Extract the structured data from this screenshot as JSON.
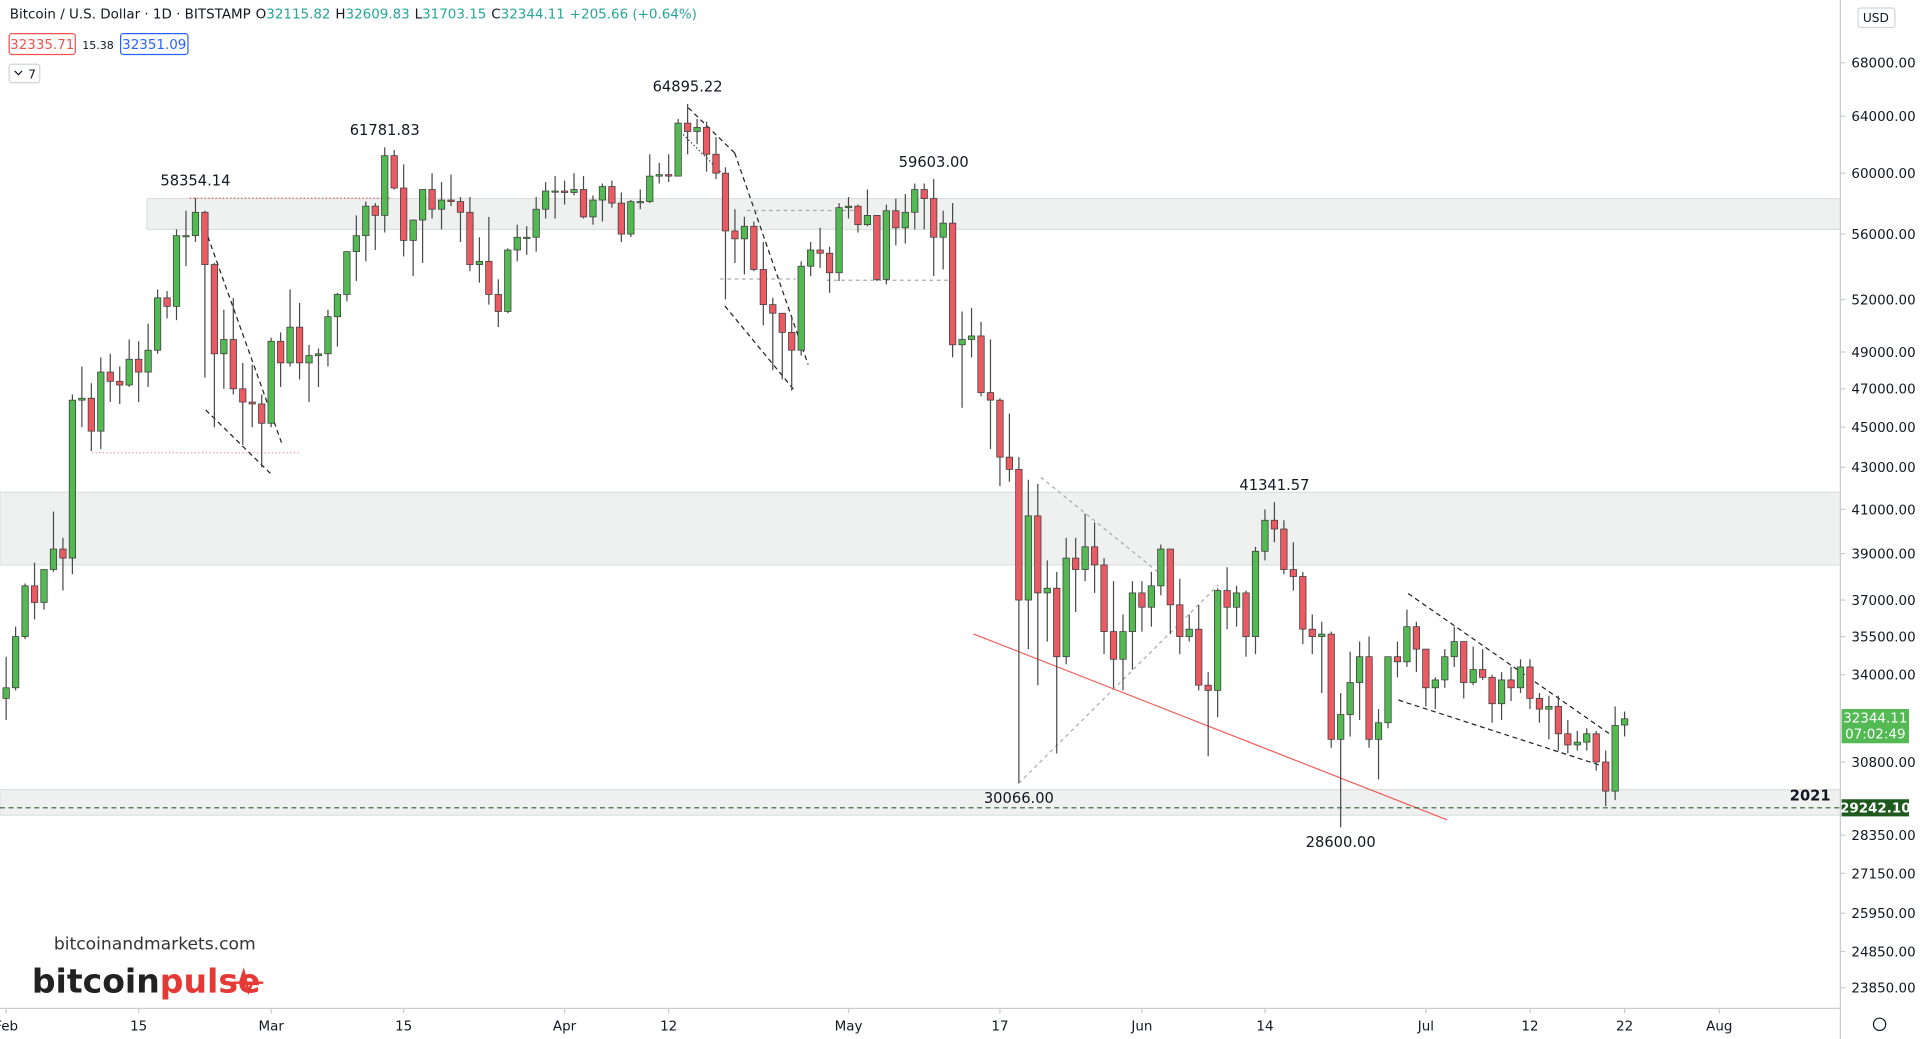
{
  "chart_data": {
    "type": "candlestick",
    "header": {
      "title": "Bitcoin / U.S. Dollar · 1D · BITSTAMP",
      "o": "O",
      "h": "H",
      "l": "L",
      "c": "C",
      "change": "+205.66 (+0.64%)",
      "bid": "32335.71",
      "spread": "15.38",
      "ask": "32351.09",
      "indicators": "7",
      "currency": "USD",
      "countdown": "07:02:49"
    },
    "log_scale": true,
    "up_color": "#53b953",
    "down_color": "#ea5a62",
    "wick_color": "#4a4a4a",
    "ylim": [
      23300,
      73000
    ],
    "yticks": [
      {
        "value": 68000,
        "label": "68000.00"
      },
      {
        "value": 64000,
        "label": "64000.00"
      },
      {
        "value": 60000,
        "label": "60000.00"
      },
      {
        "value": 56000,
        "label": "56000.00"
      },
      {
        "value": 52000,
        "label": "52000.00"
      },
      {
        "value": 49000,
        "label": "49000.00"
      },
      {
        "value": 47000,
        "label": "47000.00"
      },
      {
        "value": 45000,
        "label": "45000.00"
      },
      {
        "value": 43000,
        "label": "43000.00"
      },
      {
        "value": 41000,
        "label": "41000.00"
      },
      {
        "value": 39000,
        "label": "39000.00"
      },
      {
        "value": 37000,
        "label": "37000.00"
      },
      {
        "value": 35500,
        "label": "35500.00"
      },
      {
        "value": 34000,
        "label": "34000.00"
      },
      {
        "value": 30800,
        "label": "30800.00"
      },
      {
        "value": 28350,
        "label": "28350.00"
      },
      {
        "value": 27150,
        "label": "27150.00"
      },
      {
        "value": 25950,
        "label": "25950.00"
      },
      {
        "value": 24850,
        "label": "24850.00"
      },
      {
        "value": 23850,
        "label": "23850.00"
      }
    ],
    "xlim": [
      -0.65,
      193.8
    ],
    "xticks": [
      {
        "value": 0,
        "label": "Feb"
      },
      {
        "value": 14,
        "label": "15"
      },
      {
        "value": 28,
        "label": "Mar"
      },
      {
        "value": 42,
        "label": "15"
      },
      {
        "value": 59,
        "label": "Apr"
      },
      {
        "value": 70,
        "label": "12"
      },
      {
        "value": 89,
        "label": "May"
      },
      {
        "value": 105,
        "label": "17"
      },
      {
        "value": 120,
        "label": "Jun"
      },
      {
        "value": 133,
        "label": "14"
      },
      {
        "value": 150,
        "label": "Jul"
      },
      {
        "value": 161,
        "label": "12"
      },
      {
        "value": 171,
        "label": "22"
      },
      {
        "value": 181,
        "label": "Aug"
      }
    ],
    "zones": [
      [
        56300,
        58300
      ],
      [
        38500,
        41800
      ],
      [
        29000,
        29850
      ]
    ],
    "levels": [
      {
        "value": 29242.1,
        "label": "2021",
        "price_label": "29242.10"
      }
    ],
    "annotations": [
      {
        "value": 58354.14,
        "label": "58354.14"
      },
      {
        "value": 61781.83,
        "label": "61781.83"
      },
      {
        "value": 64895.22,
        "label": "64895.22"
      },
      {
        "value": 59603,
        "label": "59603.00"
      },
      {
        "value": 41341.57,
        "label": "41341.57"
      },
      {
        "value": 30066,
        "label": "30066.00"
      },
      {
        "value": 28600,
        "label": "28600.00"
      }
    ],
    "watermark": {
      "site": "bitcoinandmarkets.com",
      "brand_a": "bitcoin",
      "brand_b": "pulse"
    },
    "candles": [
      [
        33100,
        34700,
        32300,
        33500
      ],
      [
        33500,
        35900,
        33400,
        35500
      ],
      [
        35500,
        37700,
        35400,
        37600
      ],
      [
        37600,
        38600,
        36200,
        36900
      ],
      [
        36900,
        38300,
        36600,
        38300
      ],
      [
        38300,
        40900,
        38200,
        39200
      ],
      [
        39200,
        39700,
        37400,
        38800
      ],
      [
        38800,
        46700,
        38100,
        46400
      ],
      [
        46400,
        48200,
        45000,
        46500
      ],
      [
        46500,
        47300,
        43800,
        44800
      ],
      [
        44800,
        48700,
        43900,
        47900
      ],
      [
        47900,
        48900,
        46300,
        47400
      ],
      [
        47400,
        48200,
        46200,
        47200
      ],
      [
        47200,
        49700,
        47100,
        48600
      ],
      [
        48600,
        49600,
        46300,
        47900
      ],
      [
        47900,
        50600,
        47100,
        49100
      ],
      [
        49100,
        52600,
        48900,
        52100
      ],
      [
        52100,
        52500,
        50900,
        51600
      ],
      [
        51600,
        56300,
        50800,
        55900
      ],
      [
        55900,
        57500,
        54000,
        55900
      ],
      [
        55900,
        58354.14,
        55500,
        57400
      ],
      [
        57400,
        57500,
        47600,
        54100
      ],
      [
        54100,
        54200,
        45000,
        48900
      ],
      [
        48900,
        51400,
        47000,
        49700
      ],
      [
        49700,
        52100,
        46700,
        47000
      ],
      [
        47000,
        48400,
        44100,
        46300
      ],
      [
        46300,
        48300,
        45000,
        46200
      ],
      [
        46200,
        46700,
        43000,
        45200
      ],
      [
        45200,
        49800,
        45000,
        49600
      ],
      [
        49600,
        50100,
        47100,
        48400
      ],
      [
        48400,
        52600,
        48200,
        50400
      ],
      [
        50400,
        51800,
        47500,
        48400
      ],
      [
        48400,
        49400,
        46300,
        48800
      ],
      [
        48800,
        49200,
        47100,
        48900
      ],
      [
        48900,
        51400,
        48200,
        51000
      ],
      [
        51000,
        52400,
        49300,
        52300
      ],
      [
        52300,
        54900,
        51900,
        54900
      ],
      [
        54900,
        57200,
        53100,
        55900
      ],
      [
        55900,
        58100,
        54300,
        57800
      ],
      [
        57800,
        58000,
        55000,
        57200
      ],
      [
        57200,
        61781.83,
        56100,
        61200
      ],
      [
        61200,
        61600,
        58900,
        59000
      ],
      [
        59000,
        60600,
        54600,
        55600
      ],
      [
        55600,
        56900,
        53400,
        56900
      ],
      [
        56900,
        58900,
        54200,
        58900
      ],
      [
        58900,
        60000,
        57000,
        57600
      ],
      [
        57600,
        59400,
        56300,
        58200
      ],
      [
        58200,
        59900,
        57800,
        58100
      ],
      [
        58100,
        58400,
        55500,
        57400
      ],
      [
        57400,
        58400,
        53700,
        54100
      ],
      [
        54100,
        55800,
        53000,
        54300
      ],
      [
        54300,
        57100,
        51700,
        52300
      ],
      [
        52300,
        53200,
        50400,
        51300
      ],
      [
        51300,
        55100,
        51200,
        55000
      ],
      [
        55000,
        56600,
        54300,
        55800
      ],
      [
        55800,
        56500,
        54700,
        55800
      ],
      [
        55800,
        58400,
        54900,
        57600
      ],
      [
        57600,
        59400,
        57000,
        58800
      ],
      [
        58800,
        59800,
        57000,
        58800
      ],
      [
        58800,
        59500,
        57900,
        58700
      ],
      [
        58700,
        60000,
        58500,
        58900
      ],
      [
        58900,
        59800,
        57000,
        57100
      ],
      [
        57100,
        58500,
        56600,
        58200
      ],
      [
        58200,
        59300,
        56800,
        59100
      ],
      [
        59100,
        59500,
        57700,
        58000
      ],
      [
        58000,
        58700,
        55500,
        56000
      ],
      [
        56000,
        58200,
        55800,
        58100
      ],
      [
        58100,
        58900,
        57600,
        58100
      ],
      [
        58100,
        61300,
        58000,
        59800
      ],
      [
        59800,
        60700,
        59300,
        59900
      ],
      [
        59900,
        61300,
        59400,
        59800
      ],
      [
        59800,
        63800,
        59800,
        63500
      ],
      [
        63500,
        64895.22,
        61300,
        62900
      ],
      [
        62900,
        63800,
        62000,
        63200
      ],
      [
        63200,
        63600,
        60100,
        61300
      ],
      [
        61300,
        62500,
        59600,
        60000
      ],
      [
        60000,
        60400,
        52000,
        56200
      ],
      [
        56200,
        57600,
        54200,
        55700
      ],
      [
        55700,
        57100,
        53500,
        56500
      ],
      [
        56500,
        56800,
        53700,
        53800
      ],
      [
        53800,
        55500,
        50500,
        51700
      ],
      [
        51700,
        52100,
        48000,
        51200
      ],
      [
        51200,
        51200,
        47500,
        50100
      ],
      [
        50100,
        51000,
        46900,
        49100
      ],
      [
        49100,
        54300,
        48800,
        54000
      ],
      [
        54000,
        55500,
        53400,
        55000
      ],
      [
        55000,
        56400,
        53900,
        54800
      ],
      [
        54800,
        55200,
        52400,
        53600
      ],
      [
        53600,
        58000,
        53100,
        57700
      ],
      [
        57700,
        58400,
        57000,
        57800
      ],
      [
        57800,
        57900,
        56100,
        56600
      ],
      [
        56600,
        58900,
        56500,
        57200
      ],
      [
        57200,
        57200,
        53100,
        53200
      ],
      [
        53200,
        57900,
        52900,
        57500
      ],
      [
        57500,
        58300,
        55300,
        56400
      ],
      [
        56400,
        58600,
        55400,
        57400
      ],
      [
        57400,
        59300,
        56300,
        58900
      ],
      [
        58900,
        59300,
        56300,
        58300
      ],
      [
        58300,
        59603,
        53400,
        55800
      ],
      [
        55800,
        57500,
        53800,
        56700
      ],
      [
        56700,
        58000,
        48700,
        49400
      ],
      [
        49400,
        51300,
        46000,
        49700
      ],
      [
        49700,
        51500,
        48700,
        49900
      ],
      [
        49900,
        50700,
        46600,
        46800
      ],
      [
        46800,
        49700,
        43900,
        46400
      ],
      [
        46400,
        46500,
        42100,
        43500
      ],
      [
        43500,
        45700,
        42300,
        42900
      ],
      [
        42900,
        43500,
        30066,
        37000
      ],
      [
        37000,
        42400,
        35000,
        40700
      ],
      [
        40700,
        42200,
        33600,
        37300
      ],
      [
        37300,
        38700,
        35300,
        37500
      ],
      [
        37500,
        38200,
        31100,
        34700
      ],
      [
        34700,
        39700,
        34400,
        38800
      ],
      [
        38800,
        39700,
        36500,
        38300
      ],
      [
        38300,
        40800,
        37800,
        39300
      ],
      [
        39300,
        40400,
        37300,
        38500
      ],
      [
        38500,
        38800,
        34800,
        35700
      ],
      [
        35700,
        37800,
        33500,
        34600
      ],
      [
        34600,
        36400,
        33400,
        35700
      ],
      [
        35700,
        37800,
        34200,
        37300
      ],
      [
        37300,
        37800,
        35700,
        36700
      ],
      [
        36700,
        38200,
        35900,
        37600
      ],
      [
        37600,
        39400,
        37200,
        39200
      ],
      [
        39200,
        39200,
        35600,
        36800
      ],
      [
        36800,
        37900,
        34800,
        35500
      ],
      [
        35500,
        36400,
        35300,
        35800
      ],
      [
        35800,
        36800,
        33400,
        33600
      ],
      [
        33600,
        34100,
        31000,
        33400
      ],
      [
        33400,
        37500,
        32400,
        37400
      ],
      [
        37400,
        38400,
        35800,
        36700
      ],
      [
        36700,
        37600,
        35900,
        37300
      ],
      [
        37300,
        37400,
        34700,
        35500
      ],
      [
        35500,
        39300,
        34800,
        39100
      ],
      [
        39100,
        41000,
        38700,
        40500
      ],
      [
        40500,
        41341.57,
        39500,
        40100
      ],
      [
        40100,
        40500,
        38100,
        38300
      ],
      [
        38300,
        39500,
        37400,
        38000
      ],
      [
        38000,
        38200,
        35200,
        35800
      ],
      [
        35800,
        36400,
        34800,
        35500
      ],
      [
        35500,
        36100,
        33300,
        35600
      ],
      [
        35600,
        35700,
        31300,
        31600
      ],
      [
        31600,
        33300,
        28600,
        32500
      ],
      [
        32500,
        34900,
        31700,
        33700
      ],
      [
        33700,
        35300,
        32300,
        34700
      ],
      [
        34700,
        35500,
        31300,
        31600
      ],
      [
        31600,
        32700,
        30200,
        32200
      ],
      [
        32200,
        34700,
        32000,
        34700
      ],
      [
        34700,
        35300,
        33900,
        34500
      ],
      [
        34500,
        36600,
        34300,
        35900
      ],
      [
        35900,
        36100,
        34100,
        35000
      ],
      [
        35000,
        35000,
        32800,
        33500
      ],
      [
        33500,
        33900,
        32700,
        33800
      ],
      [
        33800,
        35000,
        33500,
        34700
      ],
      [
        34700,
        35900,
        34300,
        35300
      ],
      [
        35300,
        35300,
        33100,
        33700
      ],
      [
        33700,
        35100,
        33600,
        34200
      ],
      [
        34200,
        35000,
        33800,
        33900
      ],
      [
        33900,
        34000,
        32200,
        32900
      ],
      [
        32900,
        34100,
        32300,
        33800
      ],
      [
        33800,
        34300,
        33000,
        33500
      ],
      [
        33500,
        34600,
        33300,
        34300
      ],
      [
        34300,
        34600,
        32700,
        33100
      ],
      [
        33100,
        33300,
        32200,
        32700
      ],
      [
        32700,
        33200,
        31600,
        32800
      ],
      [
        32800,
        33200,
        31200,
        31800
      ],
      [
        31800,
        32300,
        31100,
        31400
      ],
      [
        31400,
        31900,
        31200,
        31500
      ],
      [
        31500,
        32000,
        31200,
        31800
      ],
      [
        31800,
        31900,
        30500,
        30800
      ],
      [
        30800,
        31200,
        29300,
        29800
      ],
      [
        29800,
        32800,
        29500,
        32100
      ],
      [
        32115.82,
        32609.83,
        31703.15,
        32344.11
      ]
    ]
  }
}
